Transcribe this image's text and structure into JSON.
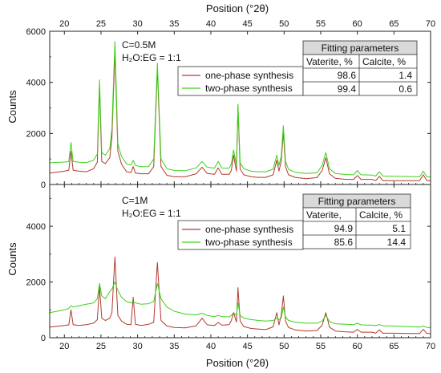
{
  "axis_text": {
    "xlabel": "Position (°2θ)",
    "ylabel": "Counts"
  },
  "chart_data": [
    {
      "type": "line",
      "panel": "top",
      "xlabel": "Position (°2θ)",
      "ylabel": "Counts",
      "xlim": [
        18,
        70
      ],
      "ylim": [
        0,
        6000
      ],
      "x_ticks": [
        20,
        25,
        30,
        35,
        40,
        45,
        50,
        55,
        60,
        65,
        70
      ],
      "y_ticks": [
        0,
        2000,
        4000,
        6000
      ],
      "grid": false,
      "annotation": {
        "line1": "C=0.5M",
        "line2": "H₂O:EG = 1:1"
      },
      "legend_placement": "upper-right",
      "series": [
        {
          "name": "one-phase synthesis",
          "color": "#b03a2e",
          "x": [
            18,
            20,
            20.6,
            20.9,
            21.2,
            22,
            23,
            24,
            24.5,
            24.8,
            25.1,
            25.6,
            26.2,
            26.5,
            26.9,
            27.3,
            27.8,
            28.5,
            29.1,
            29.4,
            29.7,
            30.5,
            31.5,
            32.2,
            32.7,
            33.2,
            34,
            35,
            36.5,
            38,
            38.8,
            39.5,
            40.5,
            41,
            41.5,
            42.5,
            42.8,
            43.1,
            43.5,
            43.7,
            44,
            44.5,
            45.5,
            46.5,
            47.5,
            48.5,
            49,
            49.3,
            49.6,
            49.9,
            50.2,
            50.6,
            51.5,
            53,
            54.5,
            55.2,
            55.7,
            56.2,
            57,
            58.5,
            59.5,
            60,
            60.5,
            62,
            62.5,
            63,
            63.5,
            65,
            67,
            68.5,
            69,
            69.5,
            70
          ],
          "y": [
            450,
            520,
            560,
            1300,
            560,
            520,
            500,
            620,
            880,
            3850,
            900,
            820,
            1050,
            1850,
            5200,
            1300,
            800,
            500,
            470,
            700,
            450,
            420,
            420,
            700,
            4550,
            700,
            360,
            300,
            300,
            420,
            680,
            430,
            400,
            650,
            400,
            400,
            550,
            1150,
            520,
            3050,
            600,
            380,
            300,
            280,
            280,
            380,
            950,
            520,
            900,
            2050,
            700,
            380,
            280,
            230,
            270,
            550,
            1050,
            420,
            240,
            200,
            200,
            350,
            200,
            200,
            150,
            320,
            150,
            150,
            150,
            150,
            380,
            150,
            150
          ]
        },
        {
          "name": "two-phase synthesis",
          "color": "#3ad21a",
          "x": [
            18,
            20,
            20.6,
            20.9,
            21.2,
            22,
            23,
            24,
            24.5,
            24.8,
            25.1,
            25.6,
            26.2,
            26.5,
            26.9,
            27.3,
            27.8,
            28.5,
            29.1,
            29.4,
            29.7,
            30.5,
            31.5,
            32.2,
            32.7,
            33.2,
            34,
            35,
            36.5,
            38,
            38.8,
            39.5,
            40.5,
            41,
            41.5,
            42.5,
            42.8,
            43.1,
            43.5,
            43.7,
            44,
            44.5,
            45.5,
            46.5,
            47.5,
            48.5,
            49,
            49.3,
            49.6,
            49.9,
            50.2,
            50.6,
            51.5,
            53,
            54.5,
            55.2,
            55.7,
            56.2,
            57,
            58.5,
            59.5,
            60,
            60.5,
            62,
            62.5,
            63,
            63.5,
            65,
            67,
            68.5,
            69,
            69.5,
            70
          ],
          "y": [
            850,
            880,
            900,
            1650,
            900,
            870,
            860,
            950,
            1200,
            4100,
            1250,
            1150,
            1400,
            2200,
            5600,
            1600,
            1100,
            800,
            760,
            950,
            740,
            700,
            700,
            1000,
            4750,
            1000,
            620,
            550,
            540,
            650,
            900,
            680,
            640,
            900,
            640,
            640,
            800,
            1350,
            760,
            3150,
            850,
            620,
            520,
            500,
            500,
            600,
            1150,
            750,
            1100,
            2300,
            900,
            600,
            480,
            430,
            460,
            750,
            1250,
            620,
            430,
            390,
            380,
            550,
            380,
            370,
            330,
            500,
            330,
            320,
            310,
            300,
            520,
            300,
            290
          ]
        }
      ],
      "table": {
        "title": "Fitting parameters",
        "headers": [
          "Vaterite, %",
          "Calcite, %"
        ],
        "rows": [
          [
            "98.6",
            "1.4"
          ],
          [
            "99.4",
            "0.6"
          ]
        ]
      }
    },
    {
      "type": "line",
      "panel": "bottom",
      "xlabel": "Position (°2θ)",
      "ylabel": "Counts",
      "xlim": [
        18,
        70
      ],
      "ylim": [
        0,
        5500
      ],
      "x_ticks": [
        20,
        25,
        30,
        35,
        40,
        45,
        50,
        55,
        60,
        65,
        70
      ],
      "y_ticks": [
        0,
        2000,
        4000
      ],
      "grid": false,
      "annotation": {
        "line1": "C=1M",
        "line2": "H₂O:EG = 1:1"
      },
      "legend_placement": "right",
      "series": [
        {
          "name": "one-phase synthesis",
          "color": "#b03a2e",
          "x": [
            18,
            20,
            20.6,
            20.9,
            21.2,
            22,
            23,
            24,
            24.5,
            24.8,
            25.1,
            25.6,
            26.2,
            26.5,
            26.9,
            27.3,
            27.8,
            28.5,
            29.1,
            29.4,
            29.7,
            30.5,
            31.5,
            32.2,
            32.7,
            33.2,
            34,
            35,
            36.5,
            38,
            38.8,
            39.5,
            40.5,
            41,
            41.5,
            42.5,
            42.8,
            43.1,
            43.5,
            43.7,
            44,
            44.5,
            45.5,
            46.5,
            47.5,
            48.5,
            49,
            49.3,
            49.6,
            49.9,
            50.2,
            50.6,
            51.5,
            53,
            54.5,
            55.2,
            55.7,
            56.2,
            57,
            58.5,
            59.5,
            60,
            60.5,
            62,
            62.5,
            63,
            63.5,
            65,
            67,
            68.5,
            69,
            69.5,
            70
          ],
          "y": [
            380,
            440,
            460,
            1000,
            470,
            440,
            470,
            520,
            650,
            1850,
            700,
            620,
            700,
            900,
            2900,
            800,
            600,
            480,
            470,
            1450,
            480,
            440,
            480,
            550,
            2700,
            620,
            420,
            370,
            350,
            430,
            700,
            460,
            440,
            550,
            450,
            470,
            620,
            900,
            560,
            1800,
            600,
            400,
            330,
            310,
            290,
            390,
            900,
            460,
            800,
            1500,
            600,
            370,
            280,
            240,
            260,
            450,
            900,
            380,
            240,
            210,
            200,
            300,
            200,
            200,
            160,
            280,
            160,
            160,
            150,
            150,
            300,
            150,
            150
          ]
        },
        {
          "name": "two-phase synthesis",
          "color": "#3ad21a",
          "x": [
            18,
            20,
            20.6,
            20.9,
            21.2,
            22,
            23,
            24,
            24.5,
            24.8,
            25.1,
            25.6,
            26.2,
            26.5,
            26.9,
            27.3,
            27.8,
            28.5,
            29.1,
            29.4,
            29.7,
            30.5,
            31.5,
            32.2,
            32.7,
            33.2,
            34,
            35,
            36.5,
            38,
            38.8,
            39.5,
            40.5,
            41,
            41.5,
            42.5,
            42.8,
            43.1,
            43.5,
            43.7,
            44,
            44.5,
            45.5,
            46.5,
            47.5,
            48.5,
            49,
            49.3,
            49.6,
            49.9,
            50.2,
            50.6,
            51.5,
            53,
            54.5,
            55.2,
            55.7,
            56.2,
            57,
            58.5,
            59.5,
            60,
            60.5,
            62,
            62.5,
            63,
            63.5,
            65,
            67,
            68.5,
            69,
            69.5,
            70
          ],
          "y": [
            900,
            1000,
            1050,
            1150,
            1100,
            1150,
            1200,
            1250,
            1400,
            1950,
            1500,
            1400,
            1650,
            1750,
            2000,
            1700,
            1450,
            1300,
            1250,
            1300,
            1250,
            1200,
            1220,
            1300,
            1950,
            1400,
            1100,
            950,
            850,
            820,
            880,
            800,
            760,
            800,
            760,
            750,
            800,
            900,
            800,
            1250,
            800,
            700,
            650,
            620,
            600,
            620,
            700,
            650,
            700,
            1100,
            750,
            620,
            560,
            520,
            520,
            600,
            800,
            580,
            500,
            480,
            470,
            520,
            460,
            450,
            440,
            470,
            430,
            420,
            400,
            380,
            420,
            370,
            360
          ]
        }
      ],
      "table": {
        "title": "Fitting parameters",
        "headers": [
          "Vaterite,",
          "Calcite, %"
        ],
        "rows": [
          [
            "94.9",
            "5.1"
          ],
          [
            "85.6",
            "14.4"
          ]
        ]
      }
    }
  ]
}
